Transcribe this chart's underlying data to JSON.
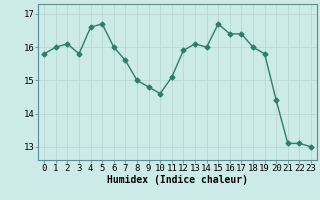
{
  "x": [
    0,
    1,
    2,
    3,
    4,
    5,
    6,
    7,
    8,
    9,
    10,
    11,
    12,
    13,
    14,
    15,
    16,
    17,
    18,
    19,
    20,
    21,
    22,
    23
  ],
  "y": [
    15.8,
    16.0,
    16.1,
    15.8,
    16.6,
    16.7,
    16.0,
    15.6,
    15.0,
    14.8,
    14.6,
    15.1,
    15.9,
    16.1,
    16.0,
    16.7,
    16.4,
    16.4,
    16.0,
    15.8,
    14.4,
    13.1,
    13.1,
    13.0
  ],
  "line_color": "#2e7d6b",
  "marker": "D",
  "marker_size": 2.5,
  "bg_color": "#cceae8",
  "grid_color": "#b8d8d5",
  "xlabel": "Humidex (Indice chaleur)",
  "xlabel_fontsize": 7,
  "tick_fontsize": 6.5,
  "ylim": [
    12.6,
    17.3
  ],
  "xlim": [
    -0.5,
    23.5
  ],
  "yticks": [
    13,
    14,
    15,
    16,
    17
  ],
  "xticks": [
    0,
    1,
    2,
    3,
    4,
    5,
    6,
    7,
    8,
    9,
    10,
    11,
    12,
    13,
    14,
    15,
    16,
    17,
    18,
    19,
    20,
    21,
    22,
    23
  ]
}
